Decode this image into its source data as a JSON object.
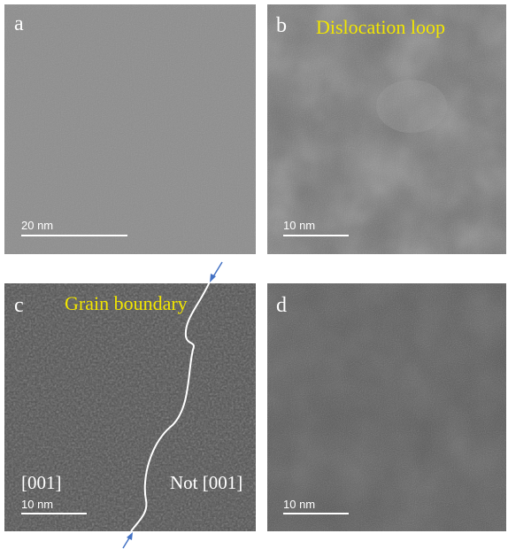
{
  "panels": [
    {
      "label": "a",
      "scale_bar": "20 nm"
    },
    {
      "label": "b",
      "title": "Dislocation loop",
      "scale_bar": "10 nm"
    },
    {
      "label": "c",
      "title": "Grain boundary",
      "scale_bar": "10 nm",
      "left_orientation": "[001]",
      "right_orientation": "Not [001]"
    },
    {
      "label": "d",
      "scale_bar": "10 nm"
    }
  ]
}
